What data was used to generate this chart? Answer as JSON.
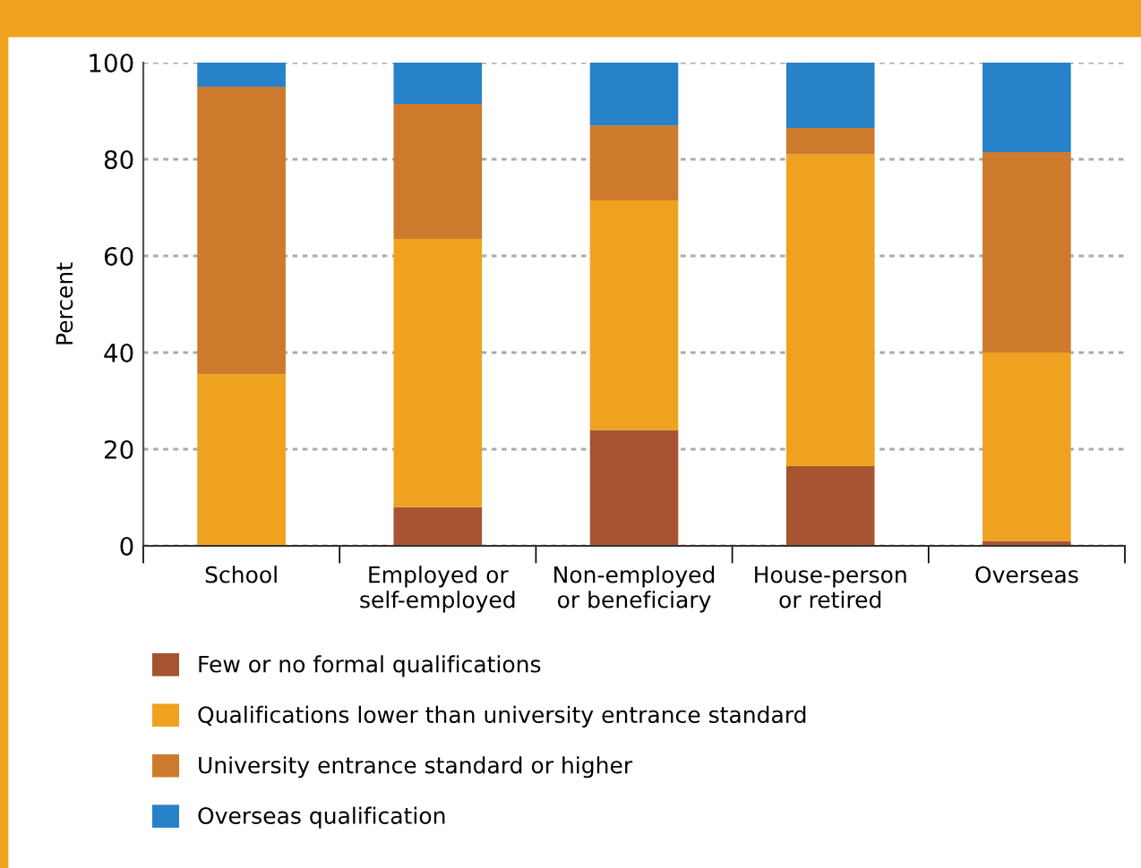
{
  "chart_data": {
    "type": "bar",
    "stacked": true,
    "ylabel": "Percent",
    "categories": [
      "School",
      "Employed or\nself-employed",
      "Non-employed\nor beneficiary",
      "House-person\nor retired",
      "Overseas"
    ],
    "series": [
      {
        "name": "Few or no formal qualifications",
        "color": "#a65432",
        "values": [
          0,
          8,
          24,
          16.5,
          1
        ]
      },
      {
        "name": "Qualifications lower than university entrance standard",
        "color": "#efa220",
        "values": [
          35.5,
          55.5,
          47.5,
          64.5,
          39
        ]
      },
      {
        "name": "University entrance standard or higher",
        "color": "#cd7a2d",
        "values": [
          59.5,
          28,
          15.5,
          5.5,
          41.5
        ]
      },
      {
        "name": "Overseas qualification",
        "color": "#2782c8",
        "values": [
          5,
          8.5,
          13,
          13.5,
          18.5
        ]
      }
    ],
    "ylim": [
      0,
      100
    ],
    "yticks": [
      0,
      20,
      40,
      60,
      80,
      100
    ],
    "grid": "y",
    "legend": "bottom"
  }
}
